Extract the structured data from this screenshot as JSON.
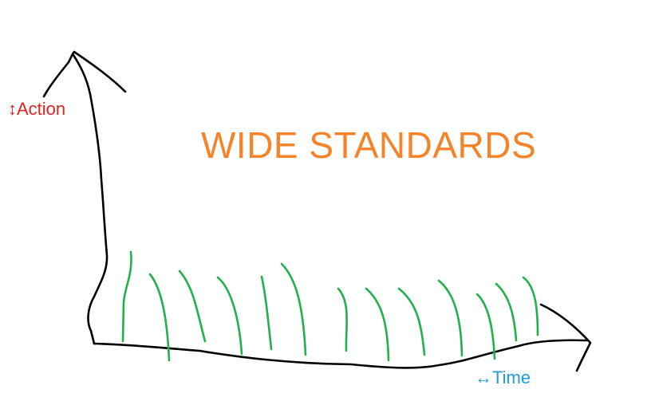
{
  "title": "WIDE STANDARDS",
  "y_axis_label": "↕Action",
  "x_axis_label": "↔Time",
  "colors": {
    "title": "#f5832a",
    "y_axis_label": "#e0231c",
    "x_axis_label": "#1f9fdb",
    "axes": "#000000",
    "strokes": "#22b04b"
  },
  "icons": {
    "y_axis_arrow": "up-arrow-icon",
    "x_axis_arrow": "right-arrow-icon"
  }
}
